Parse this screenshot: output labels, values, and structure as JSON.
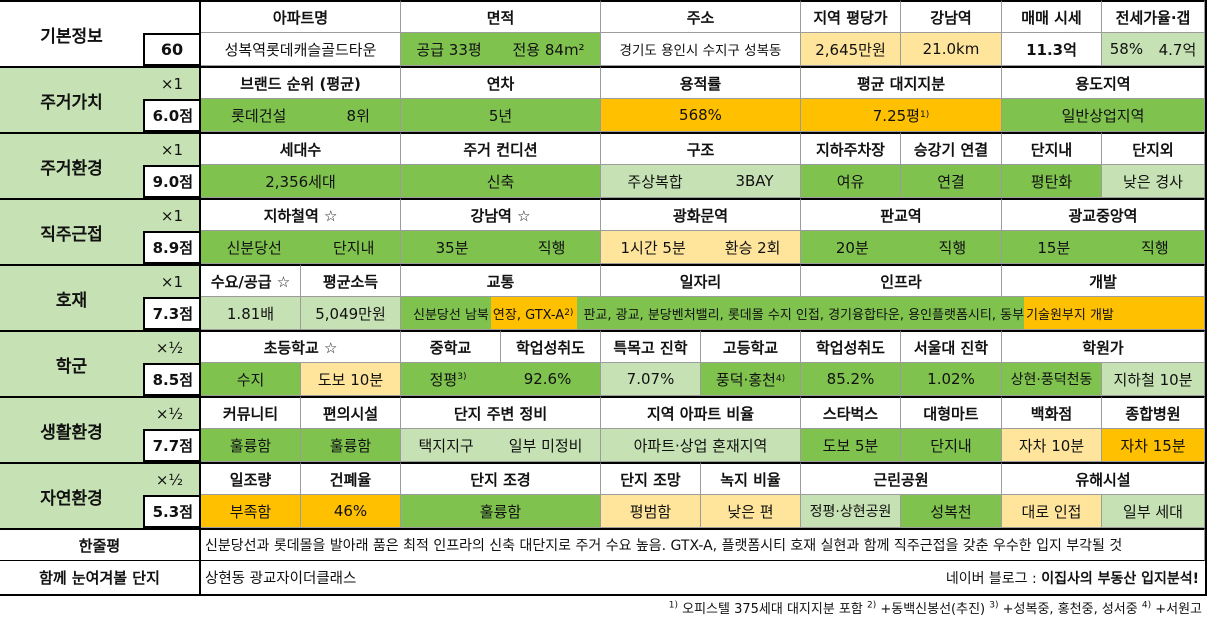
{
  "basic": {
    "label": "기본정보",
    "score": "60",
    "headers": {
      "apt_name": "아파트명",
      "area": "면적",
      "address": "주소",
      "region_price": "지역 평당가",
      "gangnam": "강남역",
      "sale_price": "매매 시세",
      "jeonse": "전세가율·갭"
    },
    "values": {
      "apt_name": "성복역롯데캐슬골드타운",
      "area_supply": "공급 33평",
      "area_exclusive": "전용 84m²",
      "address": "경기도 용인시 수지구 성복동",
      "region_price": "2,645만원",
      "gangnam": "21.0km",
      "sale_price": "11.3억",
      "jeonse_rate": "58%",
      "jeonse_gap": "4.7억"
    }
  },
  "sections": [
    {
      "key": "housing_value",
      "label": "주거가치",
      "mult": "×1",
      "score": "6.0점",
      "headers": [
        "브랜드 순위 (평균)",
        "연차",
        "용적률",
        "평균 대지지분",
        "용도지역"
      ],
      "values": [
        "롯데건설",
        "8위",
        "5년",
        "568%",
        "7.25평",
        "일반상업지역"
      ],
      "sup1": "1)"
    },
    {
      "key": "housing_env",
      "label": "주거환경",
      "mult": "×1",
      "score": "9.0점",
      "headers": [
        "세대수",
        "주거 컨디션",
        "구조",
        "지하주차장",
        "승강기 연결",
        "단지내",
        "단지외"
      ],
      "values": [
        "2,356세대",
        "신축",
        "주상복합",
        "3BAY",
        "여유",
        "연결",
        "평탄화",
        "낮은 경사"
      ]
    },
    {
      "key": "commute",
      "label": "직주근접",
      "mult": "×1",
      "score": "8.9점",
      "headers": [
        "지하철역 ☆",
        "강남역 ☆",
        "광화문역",
        "판교역",
        "광교중앙역"
      ],
      "values": [
        "신분당선",
        "단지내",
        "35분",
        "직행",
        "1시간 5분",
        "환승 2회",
        "20분",
        "직행",
        "15분",
        "직행"
      ]
    },
    {
      "key": "development",
      "label": "호재",
      "mult": "×1",
      "score": "7.3점",
      "headers": [
        "수요/공급 ☆",
        "평균소득",
        "교통",
        "일자리",
        "인프라",
        "개발"
      ],
      "values": [
        "1.81배",
        "5,049만원",
        "신분당선 남북",
        "연장, GTX-A",
        "판교, 광교, 분당벤처밸리, 롯데몰 수지 인접, 경기융합타운, 용인플랫폼시티, 동부",
        "기술원부지 개발"
      ],
      "sup2": "2)"
    },
    {
      "key": "school",
      "label": "학군",
      "mult": "×½",
      "score": "8.5점",
      "headers": [
        "초등학교 ☆",
        "중학교",
        "학업성취도",
        "특목고 진학",
        "고등학교",
        "학업성취도",
        "서울대 진학",
        "학원가"
      ],
      "values": [
        "수지",
        "도보 10분",
        "정평",
        "92.6%",
        "7.07%",
        "풍덕·홍천",
        "85.2%",
        "1.02%",
        "상현·풍덕천동",
        "지하철 10분"
      ],
      "sup3": "3)",
      "sup4": "4)"
    },
    {
      "key": "living",
      "label": "생활환경",
      "mult": "×½",
      "score": "7.7점",
      "headers": [
        "커뮤니티",
        "편의시설",
        "단지 주변 정비",
        "지역 아파트 비율",
        "스타벅스",
        "대형마트",
        "백화점",
        "종합병원"
      ],
      "values": [
        "훌륭함",
        "훌륭함",
        "택지지구",
        "일부 미정비",
        "아파트·상업 혼재지역",
        "도보 5분",
        "단지내",
        "자차 10분",
        "자차 15분"
      ]
    },
    {
      "key": "nature",
      "label": "자연환경",
      "mult": "×½",
      "score": "5.3점",
      "headers": [
        "일조량",
        "건폐율",
        "단지 조경",
        "단지 조망",
        "녹지 비율",
        "근린공원",
        "유해시설"
      ],
      "values": [
        "부족함",
        "46%",
        "훌륭함",
        "평범함",
        "낮은 편",
        "정평·상현공원",
        "성복천",
        "대로 인접",
        "일부 세대"
      ]
    }
  ],
  "summary": {
    "label": "한줄평",
    "text": "신분당선과 롯데몰을 발아래 품은 최적 인프라의 신축 대단지로 주거 수요 높음. GTX-A, 플랫폼시티 호재 실현과 함께 직주근접을 갖춘 우수한 입지 부각될 것"
  },
  "related": {
    "label": "함께 눈여겨볼 단지",
    "text": "상현동 광교자이더클래스",
    "blog_prefix": "네이버 블로그 : ",
    "blog_name": "이집사의 부동산 입지분석!"
  },
  "footnotes": {
    "n1": "1)",
    "t1": " 오피스텔 375세대 대지지분 포함 ",
    "n2": "2)",
    "t2": " +동백신봉선(추진) ",
    "n3": "3)",
    "t3": " +성복중, 홍천중, 성서중 ",
    "n4": "4)",
    "t4": " +서원고"
  },
  "colors": {
    "green": "#7fc34e",
    "light_green": "#c6e2b4",
    "yellow": "#ffe59b",
    "orange": "#ffc000"
  }
}
